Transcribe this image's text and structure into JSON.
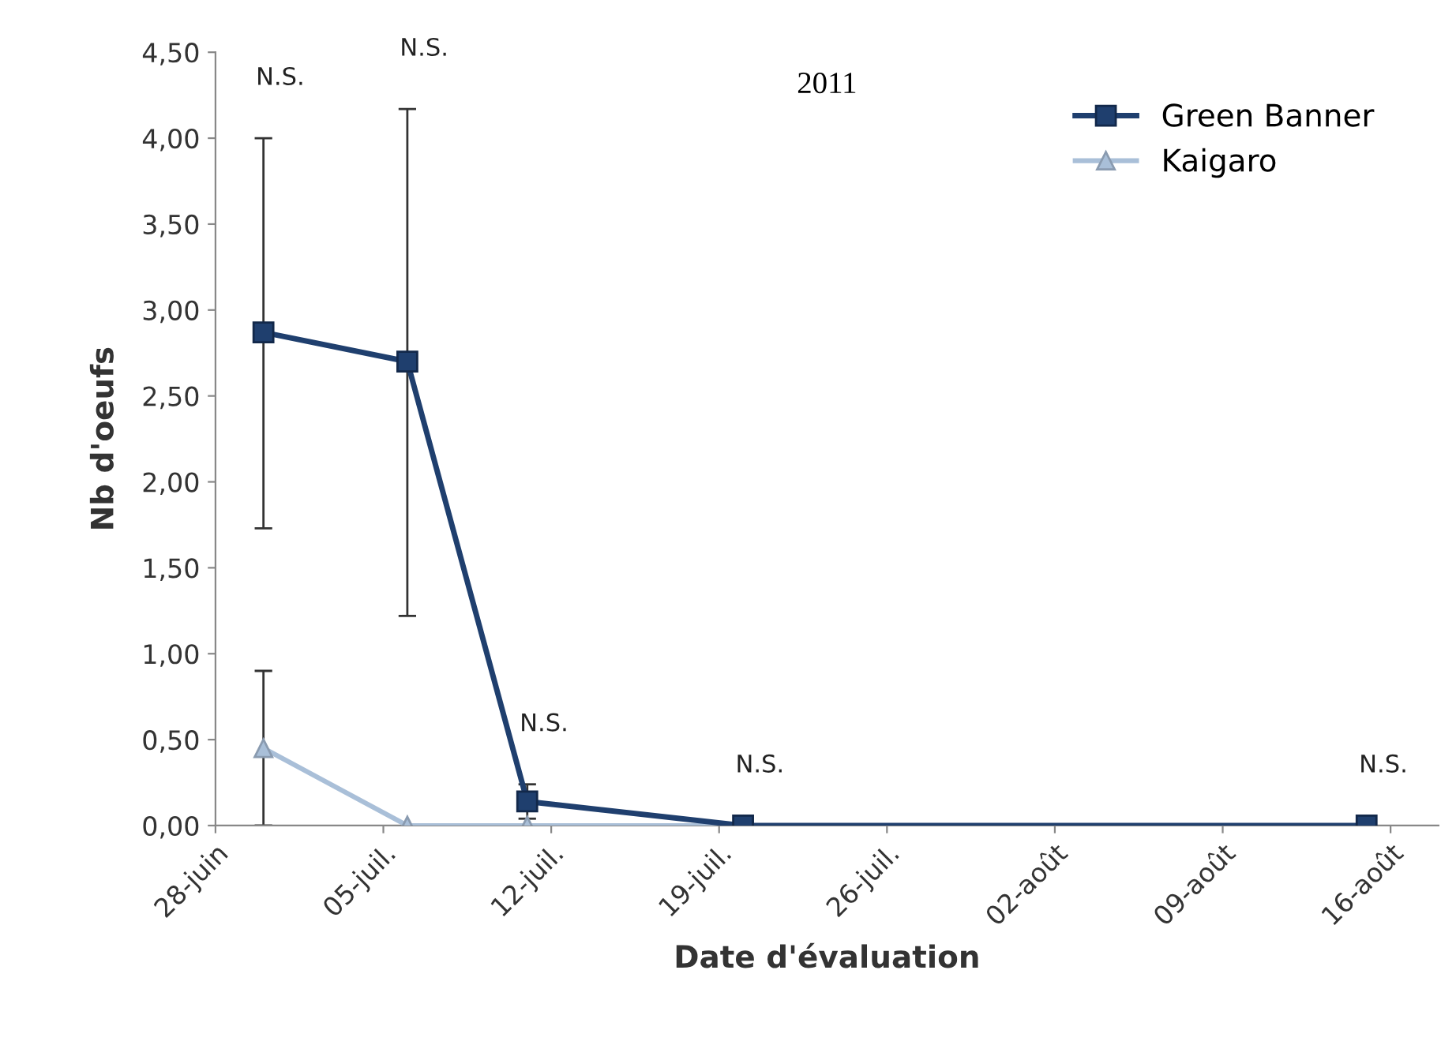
{
  "chart_data": {
    "type": "line",
    "title": "2011",
    "xlabel": "Date d'évaluation",
    "ylabel": "Nb d'oeufs",
    "xlim": [
      "2011-06-28",
      "2011-08-18"
    ],
    "xticks": [
      {
        "value": "2011-06-28",
        "label": "28-juin"
      },
      {
        "value": "2011-07-05",
        "label": "05-juil."
      },
      {
        "value": "2011-07-12",
        "label": "12-juil."
      },
      {
        "value": "2011-07-19",
        "label": "19-juil."
      },
      {
        "value": "2011-07-26",
        "label": "26-juil."
      },
      {
        "value": "2011-08-02",
        "label": "02-août"
      },
      {
        "value": "2011-08-09",
        "label": "09-août"
      },
      {
        "value": "2011-08-16",
        "label": "16-août"
      }
    ],
    "ylim": [
      0,
      4.5
    ],
    "yticks": [
      {
        "value": 0,
        "label": "0,00"
      },
      {
        "value": 0.5,
        "label": "0,50"
      },
      {
        "value": 1,
        "label": "1,00"
      },
      {
        "value": 1.5,
        "label": "1,50"
      },
      {
        "value": 2,
        "label": "2,00"
      },
      {
        "value": 2.5,
        "label": "2,50"
      },
      {
        "value": 3,
        "label": "3,00"
      },
      {
        "value": 3.5,
        "label": "3,50"
      },
      {
        "value": 4,
        "label": "4,00"
      },
      {
        "value": 4.5,
        "label": "4,50"
      }
    ],
    "x": [
      "2011-06-30",
      "2011-07-06",
      "2011-07-11",
      "2011-07-20",
      "2011-08-15"
    ],
    "series": [
      {
        "name": "Green Banner",
        "color": "#1f3f6e",
        "marker": "square",
        "values": [
          2.87,
          2.7,
          0.14,
          0,
          0
        ],
        "errors": [
          [
            1.73,
            4.0
          ],
          [
            1.22,
            4.17
          ],
          [
            0.04,
            0.24
          ],
          null,
          null
        ]
      },
      {
        "name": "Kaigaro",
        "color": "#a9bfd8",
        "marker": "triangle",
        "values": [
          0.45,
          0,
          0,
          0,
          0
        ],
        "errors": [
          [
            0,
            0.9
          ],
          null,
          null,
          null,
          null
        ]
      }
    ],
    "annotations": [
      "N.S.",
      "N.S.",
      "N.S.",
      "N.S.",
      "N.S."
    ],
    "legend": "top right",
    "grid": false
  }
}
